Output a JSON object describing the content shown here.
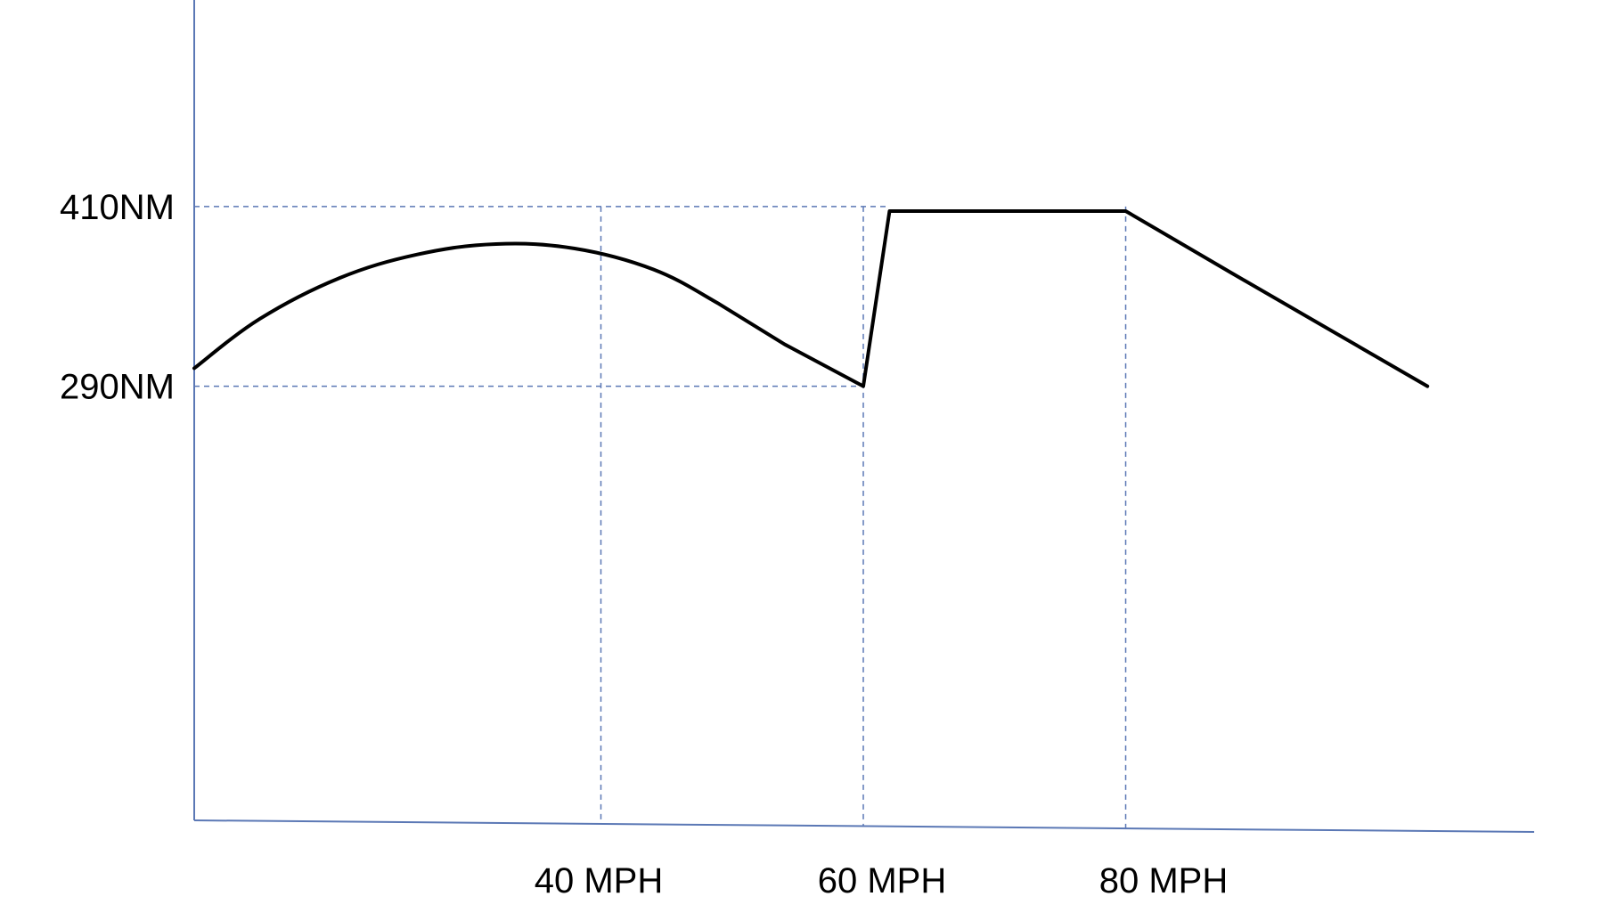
{
  "chart_data": {
    "type": "line",
    "title": "",
    "xlabel": "",
    "ylabel": "",
    "x_ticks": [
      {
        "value": 40,
        "label": "40 MPH"
      },
      {
        "value": 60,
        "label": "60 MPH"
      },
      {
        "value": 80,
        "label": "80 MPH"
      }
    ],
    "y_ticks": [
      {
        "value": 290,
        "label": "290NM"
      },
      {
        "value": 410,
        "label": "410NM"
      }
    ],
    "xlim": [
      9,
      111
    ],
    "ylim": [
      0,
      548
    ],
    "grid": false,
    "guides": {
      "vertical_at_x": [
        40,
        60,
        80
      ],
      "horizontal_at_y": [
        290,
        410
      ]
    },
    "series": [
      {
        "color": "#000000",
        "points": [
          {
            "x": 9,
            "y": 302
          },
          {
            "x": 14,
            "y": 335
          },
          {
            "x": 20,
            "y": 362
          },
          {
            "x": 26,
            "y": 378
          },
          {
            "x": 32,
            "y": 385
          },
          {
            "x": 38,
            "y": 382
          },
          {
            "x": 44,
            "y": 368
          },
          {
            "x": 49,
            "y": 345
          },
          {
            "x": 54,
            "y": 318
          },
          {
            "x": 60,
            "y": 290
          },
          {
            "x": 62,
            "y": 407
          },
          {
            "x": 80,
            "y": 407
          },
          {
            "x": 88,
            "y": 366
          },
          {
            "x": 103,
            "y": 290
          }
        ]
      }
    ]
  },
  "colors": {
    "axis": "#5b78b5",
    "guide": "#5b78b5",
    "series": "#000000"
  }
}
